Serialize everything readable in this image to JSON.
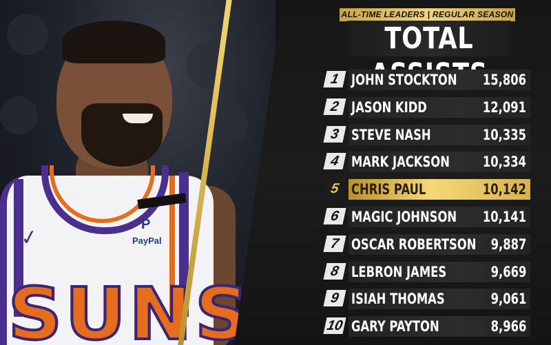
{
  "header": {
    "subtitle": "ALL-TIME LEADERS | REGULAR SEASON",
    "title": "TOTAL ASSISTS"
  },
  "photo": {
    "team_text": "SUNS",
    "sponsor": "PayPal",
    "sponsor_mark": "P"
  },
  "leaders": [
    {
      "rank": "1",
      "name": "JOHN STOCKTON",
      "value": "15,806"
    },
    {
      "rank": "2",
      "name": "JASON KIDD",
      "value": "12,091"
    },
    {
      "rank": "3",
      "name": "STEVE NASH",
      "value": "10,335"
    },
    {
      "rank": "4",
      "name": "MARK JACKSON",
      "value": "10,334"
    },
    {
      "rank": "5",
      "name": "CHRIS PAUL",
      "value": "10,142"
    },
    {
      "rank": "6",
      "name": "MAGIC JOHNSON",
      "value": "10,141"
    },
    {
      "rank": "7",
      "name": "OSCAR ROBERTSON",
      "value": "9,887"
    },
    {
      "rank": "8",
      "name": "LEBRON JAMES",
      "value": "9,669"
    },
    {
      "rank": "9",
      "name": "ISIAH THOMAS",
      "value": "9,061"
    },
    {
      "rank": "10",
      "name": "GARY PAYTON",
      "value": "8,966"
    }
  ],
  "highlight_rank": "5",
  "colors": {
    "gold": "#f1d57a",
    "team_orange": "#e56e1e",
    "team_purple": "#4b2f8f"
  }
}
